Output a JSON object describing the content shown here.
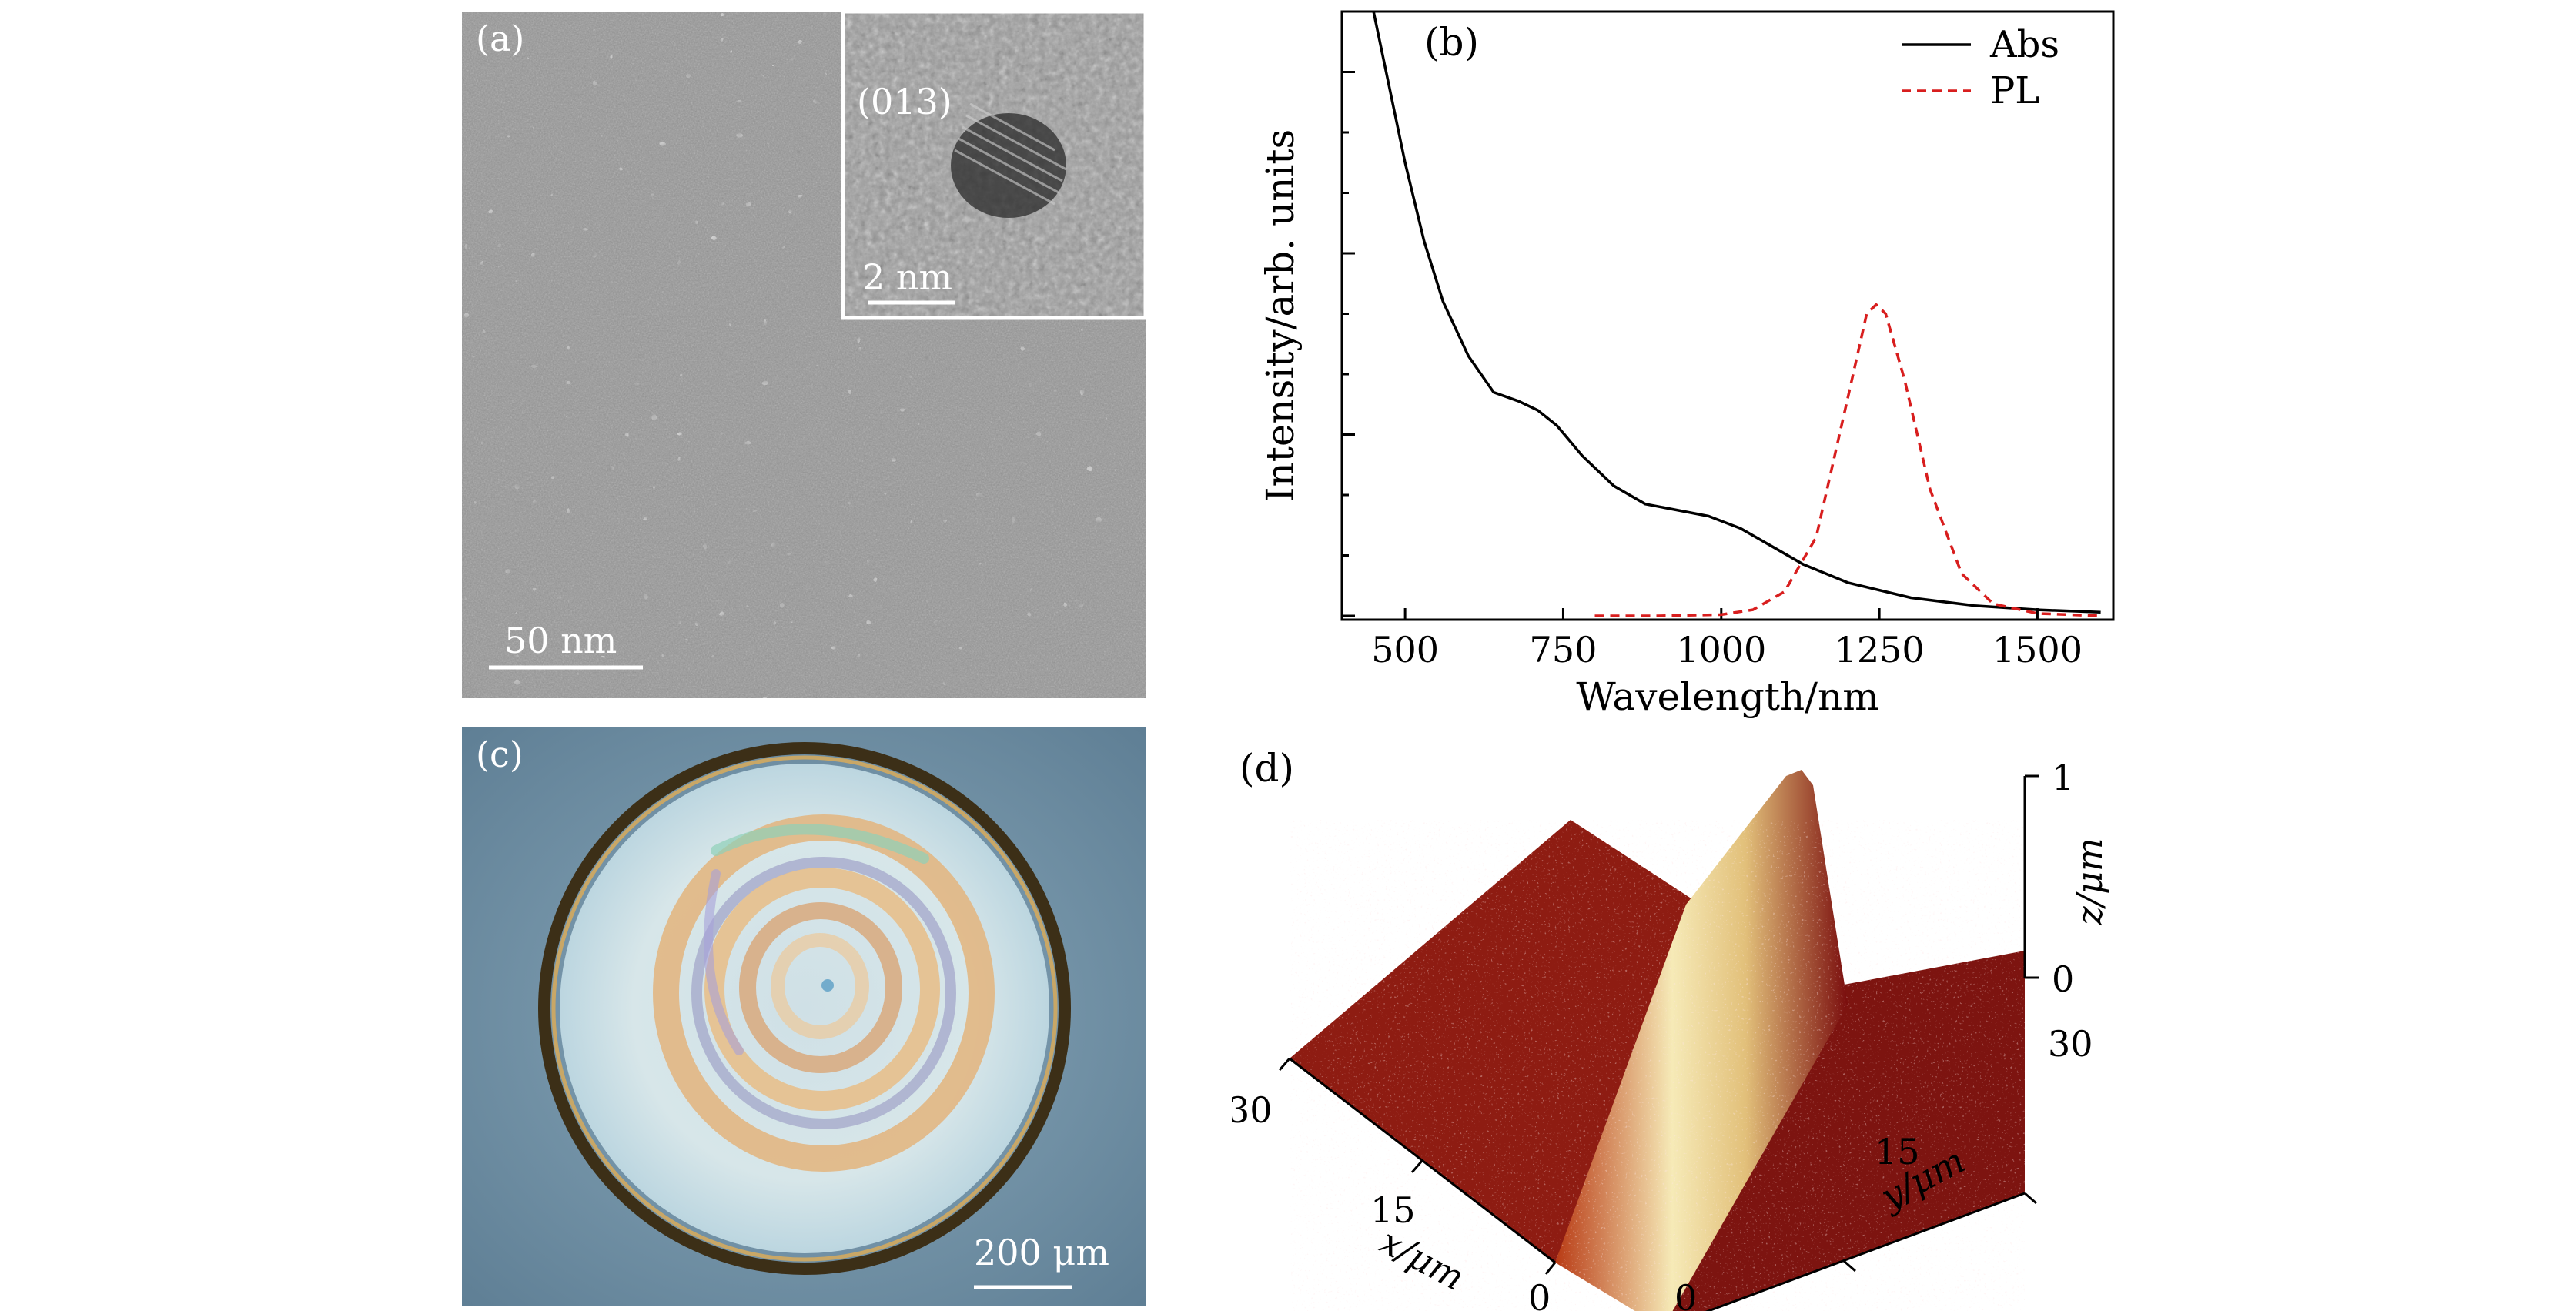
{
  "panels": {
    "a": {
      "label": "(a)",
      "inset_label": "(013)",
      "inset_scale": "2 nm",
      "scale": "50 nm"
    },
    "b": {
      "label": "(b)"
    },
    "c": {
      "label": "(c)",
      "scale": "200 μm"
    },
    "d": {
      "label": "(d)",
      "z_label": "z/μm",
      "z_ticks": [
        "0",
        "1"
      ],
      "x_label": "x/μm",
      "x_ticks": [
        "30",
        "15",
        "0"
      ],
      "y_label": "y/μm",
      "y_ticks": [
        "0",
        "15",
        "30"
      ],
      "surface_colors": [
        "#7a0d0d",
        "#b83a14",
        "#f6eab7"
      ]
    }
  },
  "chart_data": {
    "type": "line",
    "xlabel": "Wavelength/nm",
    "ylabel": "Intensity/arb. units",
    "xlim": [
      400,
      1620
    ],
    "ylim": [
      0,
      1.0
    ],
    "x_ticks": [
      500,
      750,
      1000,
      1250,
      1500
    ],
    "legend_position": "top-right",
    "grid": false,
    "series": [
      {
        "name": "Abs",
        "color": "#000000",
        "dash": "solid",
        "x": [
          450,
          470,
          500,
          530,
          560,
          600,
          640,
          680,
          710,
          740,
          780,
          830,
          880,
          930,
          980,
          1030,
          1080,
          1130,
          1200,
          1300,
          1400,
          1500,
          1600
        ],
        "y": [
          1.0,
          0.9,
          0.75,
          0.62,
          0.52,
          0.43,
          0.37,
          0.355,
          0.34,
          0.315,
          0.265,
          0.215,
          0.185,
          0.175,
          0.165,
          0.145,
          0.115,
          0.085,
          0.055,
          0.03,
          0.017,
          0.01,
          0.006
        ]
      },
      {
        "name": "PL",
        "color": "#d81e1e",
        "dash": "dashed",
        "x": [
          800,
          900,
          1000,
          1050,
          1100,
          1150,
          1200,
          1230,
          1245,
          1260,
          1290,
          1330,
          1380,
          1430,
          1500,
          1600
        ],
        "y": [
          0.0,
          0.0,
          0.002,
          0.01,
          0.04,
          0.13,
          0.36,
          0.5,
          0.515,
          0.5,
          0.39,
          0.21,
          0.07,
          0.02,
          0.004,
          0.0
        ]
      }
    ]
  }
}
